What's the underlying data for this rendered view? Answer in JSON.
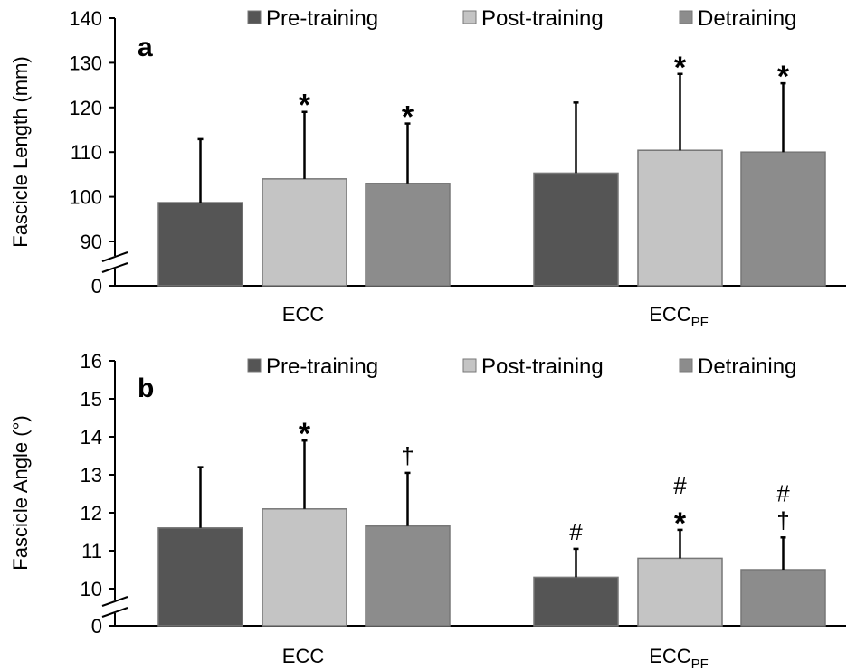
{
  "colors": {
    "pre": "#555555",
    "post": "#c4c4c4",
    "detrain": "#8c8c8c",
    "axis": "#000000",
    "bar_edge": "#777777"
  },
  "chart_data": [
    {
      "type": "bar",
      "panel_label": "a",
      "ylabel": "Fascicle Length (mm)",
      "categories": [
        "ECC",
        "ECC_PF"
      ],
      "category_labels": [
        {
          "main": "ECC",
          "sub": ""
        },
        {
          "main": "ECC",
          "sub": "PF"
        }
      ],
      "ylim": [
        90,
        140
      ],
      "y_break": true,
      "yticks": [
        "140",
        "130",
        "120",
        "110",
        "100",
        "90",
        "0"
      ],
      "legend_position": "top",
      "series": [
        {
          "name": "Pre-training",
          "values": [
            98.7,
            105.3
          ],
          "errors": [
            14.2,
            15.8
          ],
          "annotations": [
            "",
            ""
          ]
        },
        {
          "name": "Post-training",
          "values": [
            104.0,
            110.4
          ],
          "errors": [
            15.0,
            17.1
          ],
          "annotations": [
            "*",
            "*"
          ]
        },
        {
          "name": "Detraining",
          "values": [
            103.0,
            110.0
          ],
          "errors": [
            13.4,
            15.4
          ],
          "annotations": [
            "*",
            "*"
          ]
        }
      ]
    },
    {
      "type": "bar",
      "panel_label": "b",
      "ylabel": "Fascicle Angle (°)",
      "categories": [
        "ECC",
        "ECC_PF"
      ],
      "category_labels": [
        {
          "main": "ECC",
          "sub": ""
        },
        {
          "main": "ECC",
          "sub": "PF"
        }
      ],
      "ylim": [
        10,
        16
      ],
      "y_break": true,
      "yticks": [
        "16",
        "15",
        "14",
        "13",
        "12",
        "11",
        "10",
        "0"
      ],
      "legend_position": "top",
      "series": [
        {
          "name": "Pre-training",
          "values": [
            11.6,
            10.3
          ],
          "errors": [
            1.6,
            0.75
          ],
          "annotations": [
            "",
            "#"
          ]
        },
        {
          "name": "Post-training",
          "values": [
            12.1,
            10.8
          ],
          "errors": [
            1.8,
            0.75
          ],
          "annotations": [
            "*",
            "#\n*"
          ]
        },
        {
          "name": "Detraining",
          "values": [
            11.65,
            10.5
          ],
          "errors": [
            1.4,
            0.85
          ],
          "annotations": [
            "†",
            "#\n†"
          ]
        }
      ]
    }
  ]
}
